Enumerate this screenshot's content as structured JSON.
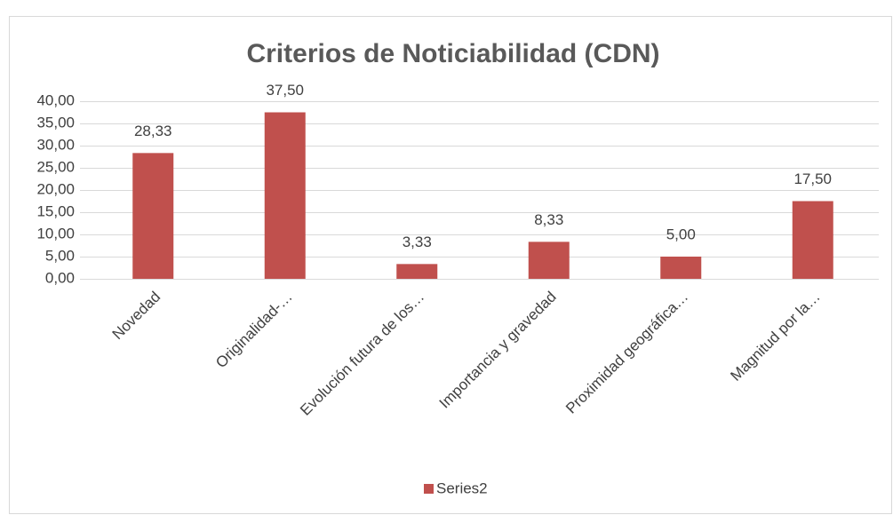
{
  "chart_data": {
    "type": "bar",
    "title": "Criterios de Noticiabilidad (CDN)",
    "categories": [
      "Novedad",
      "Originalidad-…",
      "Evolución futura de los…",
      "Importancia y gravedad",
      "Proximidad geográfica…",
      "Magnitud por la…"
    ],
    "series": [
      {
        "name": "Series2",
        "color": "#c0504d",
        "values": [
          28.33,
          37.5,
          3.33,
          8.33,
          5.0,
          17.5
        ],
        "value_labels": [
          "28,33",
          "37,50",
          "3,33",
          "8,33",
          "5,00",
          "17,50"
        ]
      }
    ],
    "ylim": [
      0,
      40
    ],
    "yticks": [
      {
        "value": 0,
        "label": "0,00"
      },
      {
        "value": 5,
        "label": "5,00"
      },
      {
        "value": 10,
        "label": "10,00"
      },
      {
        "value": 15,
        "label": "15,00"
      },
      {
        "value": 20,
        "label": "20,00"
      },
      {
        "value": 25,
        "label": "25,00"
      },
      {
        "value": 30,
        "label": "30,00"
      },
      {
        "value": 35,
        "label": "35,00"
      },
      {
        "value": 40,
        "label": "40,00"
      }
    ],
    "grid": true,
    "legend": "bottom"
  }
}
